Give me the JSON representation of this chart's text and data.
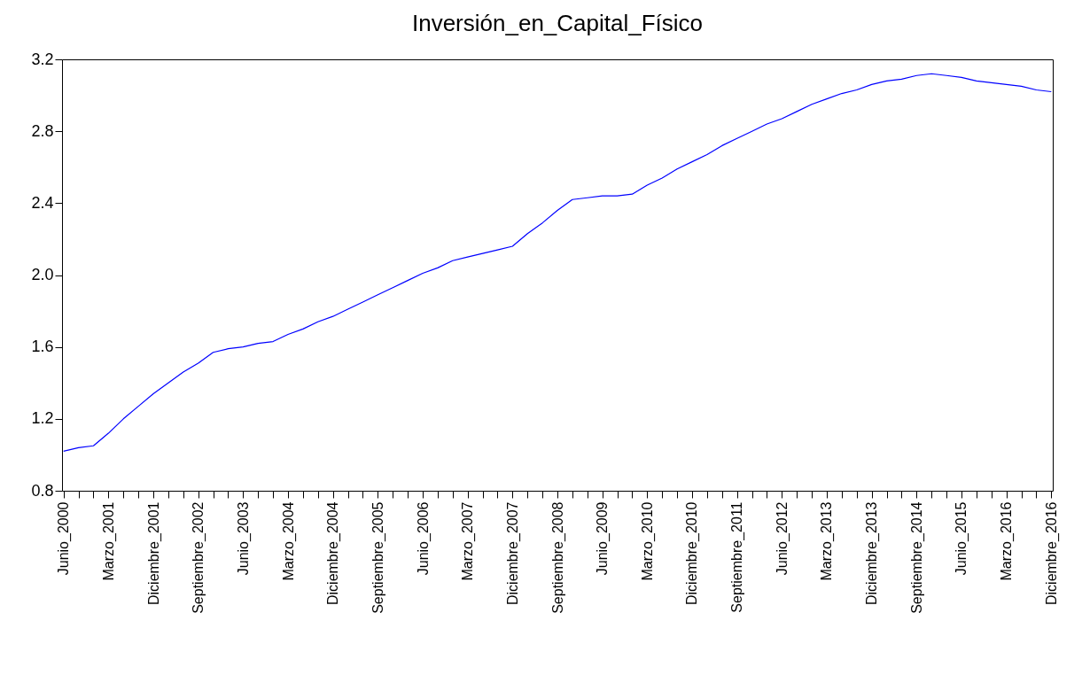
{
  "chart_data": {
    "type": "line",
    "title": "Inversión_en_Capital_Físico",
    "categories": [
      "Junio_2000",
      null,
      null,
      "Marzo_2001",
      null,
      null,
      "Diciembre_2001",
      null,
      null,
      "Septiembre_2002",
      null,
      null,
      "Junio_2003",
      null,
      null,
      "Marzo_2004",
      null,
      null,
      "Diciembre_2004",
      null,
      null,
      "Septiembre_2005",
      null,
      null,
      "Junio_2006",
      null,
      null,
      "Marzo_2007",
      null,
      null,
      "Diciembre_2007",
      null,
      null,
      "Septiembre_2008",
      null,
      null,
      "Junio_2009",
      null,
      null,
      "Marzo_2010",
      null,
      null,
      "Diciembre_2010",
      null,
      null,
      "Septiembre_2011",
      null,
      null,
      "Junio_2012",
      null,
      null,
      "Marzo_2013",
      null,
      null,
      "Diciembre_2013",
      null,
      null,
      "Septiembre_2014",
      null,
      null,
      "Junio_2015",
      null,
      null,
      "Marzo_2016",
      null,
      null,
      "Diciembre_2016"
    ],
    "series": [
      {
        "color": "#0000ff",
        "values": [
          1.02,
          1.04,
          1.05,
          1.12,
          1.2,
          1.27,
          1.34,
          1.4,
          1.46,
          1.51,
          1.57,
          1.59,
          1.6,
          1.62,
          1.63,
          1.67,
          1.7,
          1.74,
          1.77,
          1.81,
          1.85,
          1.89,
          1.93,
          1.97,
          2.01,
          2.04,
          2.08,
          2.1,
          2.12,
          2.14,
          2.16,
          2.23,
          2.29,
          2.36,
          2.42,
          2.43,
          2.44,
          2.44,
          2.45,
          2.5,
          2.54,
          2.59,
          2.63,
          2.67,
          2.72,
          2.76,
          2.8,
          2.84,
          2.87,
          2.91,
          2.95,
          2.98,
          3.01,
          3.03,
          3.06,
          3.08,
          3.09,
          3.11,
          3.12,
          3.11,
          3.1,
          3.08,
          3.07,
          3.06,
          3.05,
          3.03,
          3.02
        ]
      }
    ],
    "ylim": [
      0.8,
      3.2
    ],
    "yticks": [
      0.8,
      1.2,
      1.6,
      {
        "value": 2.0,
        "label": "2.0"
      },
      2.4,
      2.8,
      3.2
    ],
    "grid": false,
    "marker": "none",
    "line_style": "solid"
  }
}
